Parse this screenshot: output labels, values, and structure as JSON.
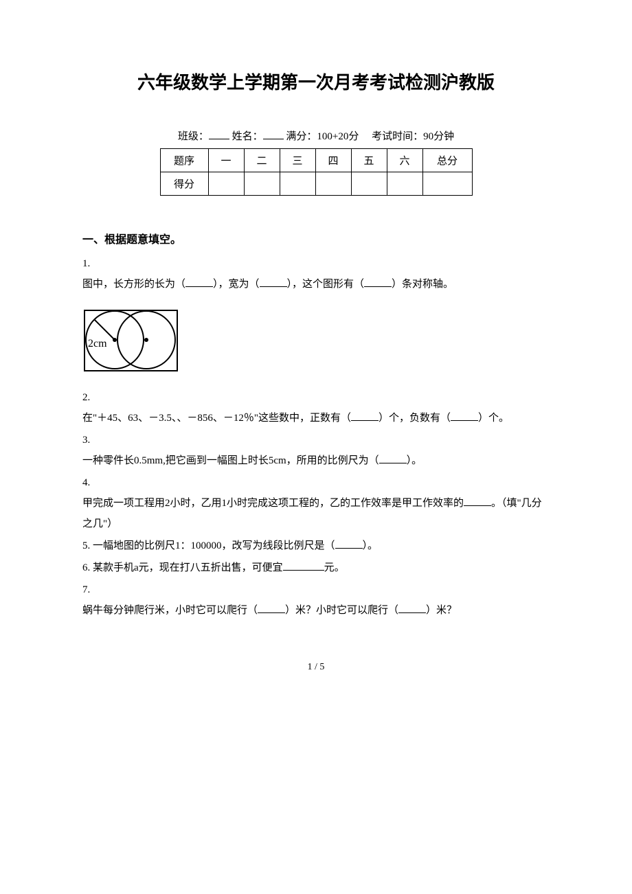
{
  "title": "六年级数学上学期第一次月考考试检测沪教版",
  "examInfo": {
    "classLabel": "班级：",
    "nameLabel": "姓名：",
    "scoreLabel": "满分：",
    "scoreValue": "100+20分",
    "timeLabel": "考试时间：",
    "timeValue": "90分钟"
  },
  "scoreTable": {
    "row1Label": "题序",
    "row2Label": "得分",
    "columns": [
      "一",
      "二",
      "三",
      "四",
      "五",
      "六",
      "总分"
    ]
  },
  "section1": {
    "header": "一、根据题意填空。",
    "q1": {
      "num": "1.",
      "text1": "图中，长方形的长为（",
      "text2": "），宽为（",
      "text3": "），这个图形有（",
      "text4": "）条对称轴。"
    },
    "q2": {
      "num": "2.",
      "text1": "在\"＋45、63、－3.5、、－856、－12％\"这些数中，正数有（",
      "text2": "）个，负数有（",
      "text3": "）个。"
    },
    "q3": {
      "num": "3.",
      "text1": "一种零件长0.5mm,把它画到一幅图上时长5cm，所用的比例尺为（",
      "text2": "）。"
    },
    "q4": {
      "num": "4.",
      "text1": "甲完成一项工程用2小时，乙用1小时完成这项工程的，乙的工作效率是甲工作效率的",
      "text2": "。（填\"几分之几\"）"
    },
    "q5": {
      "num": "5.",
      "text1": " 一幅地图的比例尺1：100000，改写为线段比例尺是（",
      "text2": "）。"
    },
    "q6": {
      "num": "6.",
      "text1": " 某款手机a元，现在打八五折出售，可便宜",
      "text2": "元。"
    },
    "q7": {
      "num": "7.",
      "text1": "蜗牛每分钟爬行米，小时它可以爬行（",
      "text2": "）米？小时它可以爬行（",
      "text3": "）米？"
    }
  },
  "diagram": {
    "label": "2cm",
    "strokeColor": "#000000",
    "strokeWidth": 2,
    "rectWidth": 135,
    "rectHeight": 88,
    "circle1cx": 47,
    "circle2cx": 93,
    "circleCy": 46,
    "circleR": 42,
    "dotR": 3
  },
  "footer": {
    "pageNum": "1 / 5"
  }
}
